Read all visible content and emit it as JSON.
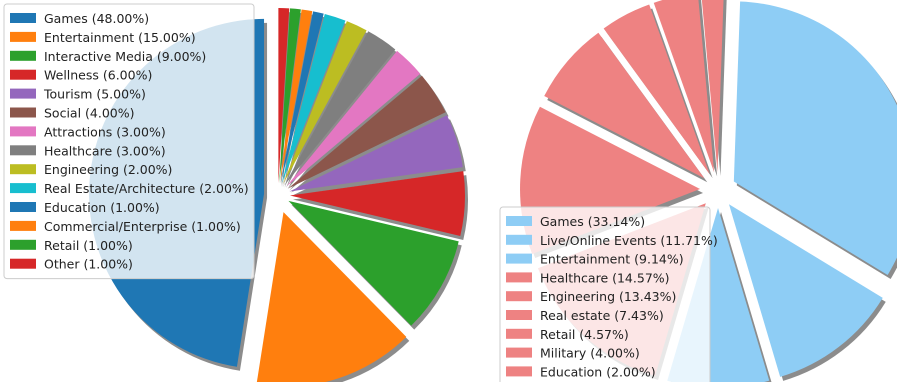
{
  "chart_data": [
    {
      "type": "pie",
      "title": "",
      "legend_position": "upper-left",
      "slices": [
        {
          "label": "Games",
          "value": 48.0,
          "color": "#1f77b4",
          "legend_text": "Games (48.00%)"
        },
        {
          "label": "Entertainment",
          "value": 15.0,
          "color": "#ff7f0e",
          "legend_text": "Entertainment (15.00%)"
        },
        {
          "label": "Interactive Media",
          "value": 9.0,
          "color": "#2ca02c",
          "legend_text": "Interactive Media (9.00%)"
        },
        {
          "label": "Wellness",
          "value": 6.0,
          "color": "#d62728",
          "legend_text": "Wellness (6.00%)"
        },
        {
          "label": "Tourism",
          "value": 5.0,
          "color": "#9467bd",
          "legend_text": "Tourism (5.00%)"
        },
        {
          "label": "Social",
          "value": 4.0,
          "color": "#8c564b",
          "legend_text": "Social (4.00%)"
        },
        {
          "label": "Attractions",
          "value": 3.0,
          "color": "#e377c2",
          "legend_text": "Attractions (3.00%)"
        },
        {
          "label": "Healthcare",
          "value": 3.0,
          "color": "#7f7f7f",
          "legend_text": "Healthcare (3.00%)"
        },
        {
          "label": "Engineering",
          "value": 2.0,
          "color": "#bcbd22",
          "legend_text": "Engineering (2.00%)"
        },
        {
          "label": "Real Estate/Architecture",
          "value": 2.0,
          "color": "#17becf",
          "legend_text": "Real Estate/Architecture (2.00%)"
        },
        {
          "label": "Education",
          "value": 1.0,
          "color": "#1f77b4",
          "legend_text": "Education (1.00%)"
        },
        {
          "label": "Commercial/Enterprise",
          "value": 1.0,
          "color": "#ff7f0e",
          "legend_text": "Commercial/Enterprise (1.00%)"
        },
        {
          "label": "Retail",
          "value": 1.0,
          "color": "#2ca02c",
          "legend_text": "Retail (1.00%)"
        },
        {
          "label": "Other",
          "value": 1.0,
          "color": "#d62728",
          "legend_text": "Other (1.00%)"
        }
      ]
    },
    {
      "type": "pie",
      "title": "",
      "legend_position": "lower-left",
      "slices": [
        {
          "label": "Games",
          "value": 33.14,
          "color": "#8ecdf5",
          "legend_text": "Games (33.14%)"
        },
        {
          "label": "Live/Online Events",
          "value": 11.71,
          "color": "#8ecdf5",
          "legend_text": "Live/Online Events (11.71%)"
        },
        {
          "label": "Entertainment",
          "value": 9.14,
          "color": "#8ecdf5",
          "legend_text": "Entertainment (9.14%)"
        },
        {
          "label": "Healthcare",
          "value": 14.57,
          "color": "#ee8282",
          "legend_text": "Healthcare (14.57%)"
        },
        {
          "label": "Engineering",
          "value": 13.43,
          "color": "#ee8282",
          "legend_text": "Engineering (13.43%)"
        },
        {
          "label": "Real estate",
          "value": 7.43,
          "color": "#ee8282",
          "legend_text": "Real estate (7.43%)"
        },
        {
          "label": "Retail",
          "value": 4.57,
          "color": "#ee8282",
          "legend_text": "Retail (4.57%)"
        },
        {
          "label": "Military",
          "value": 4.0,
          "color": "#ee8282",
          "legend_text": "Military (4.00%)"
        },
        {
          "label": "Education",
          "value": 2.0,
          "color": "#ee8282",
          "legend_text": "Education (2.00%)"
        }
      ]
    }
  ]
}
